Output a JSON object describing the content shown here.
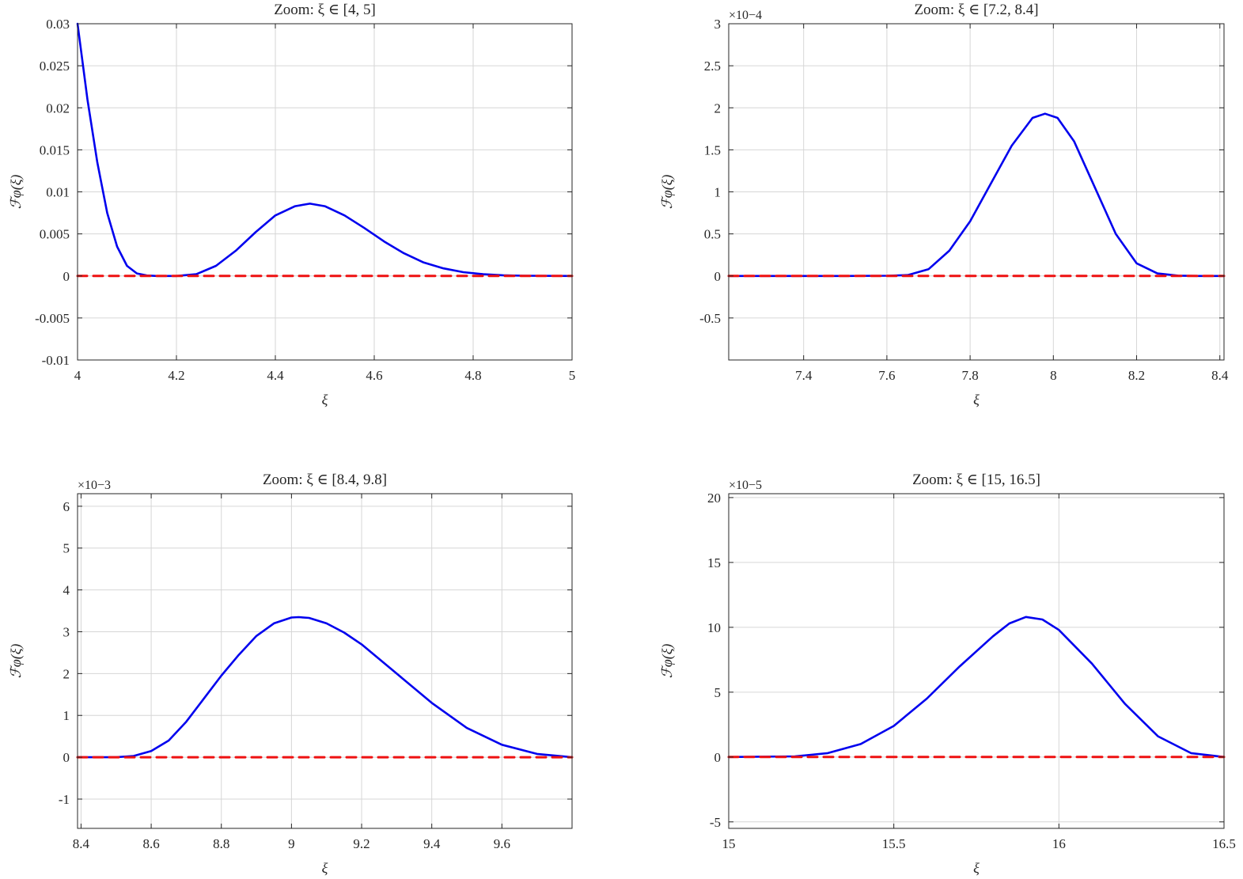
{
  "colors": {
    "blue_curve": "#0000ee",
    "red_dashed": "#ee1111",
    "grid": "#d6d6d6",
    "axes": "#262626"
  },
  "chart_data": [
    {
      "type": "line",
      "title": "Zoom: ξ ∈ [4, 5]",
      "xlabel": "ξ",
      "ylabel": "ℱφ(ξ)",
      "exponent_label": "",
      "xlim": [
        4,
        5
      ],
      "ylim": [
        -0.01,
        0.03
      ],
      "xticks": [
        4,
        4.2,
        4.4,
        4.6,
        4.8,
        5
      ],
      "xtick_labels": [
        "4",
        "4.2",
        "4.4",
        "4.6",
        "4.8",
        "5"
      ],
      "yticks": [
        -0.01,
        -0.005,
        0,
        0.005,
        0.01,
        0.015,
        0.02,
        0.025,
        0.03
      ],
      "ytick_labels": [
        "-0.01",
        "-0.005",
        "0",
        "0.005",
        "0.01",
        "0.015",
        "0.02",
        "0.025",
        "0.03"
      ],
      "grid": true,
      "series": [
        {
          "name": "blue",
          "style": "solid",
          "color": "blue",
          "x": [
            4,
            4.02,
            4.04,
            4.06,
            4.08,
            4.1,
            4.12,
            4.14,
            4.16,
            4.2,
            4.24,
            4.28,
            4.32,
            4.36,
            4.4,
            4.44,
            4.47,
            4.5,
            4.54,
            4.58,
            4.62,
            4.66,
            4.7,
            4.74,
            4.78,
            4.82,
            4.86,
            4.9,
            5
          ],
          "y": [
            0.03,
            0.021,
            0.0135,
            0.0075,
            0.0035,
            0.0012,
            0.0003,
            5e-05,
            0,
            0,
            0.0002,
            0.0012,
            0.003,
            0.0052,
            0.0072,
            0.0083,
            0.0086,
            0.0083,
            0.0072,
            0.0057,
            0.0041,
            0.0027,
            0.0016,
            0.0009,
            0.00045,
            0.0002,
            8e-05,
            2e-05,
            0
          ]
        },
        {
          "name": "red",
          "style": "dashed",
          "color": "red",
          "x": [
            4,
            5
          ],
          "y": [
            0,
            0
          ]
        }
      ]
    },
    {
      "type": "line",
      "title": "Zoom: ξ ∈ [7.2, 8.4]",
      "xlabel": "ξ",
      "ylabel": "ℱφ(ξ)",
      "exponent_label": "×10−4",
      "xlim": [
        7.22,
        8.41
      ],
      "ylim": [
        -1,
        3
      ],
      "xticks": [
        7.4,
        7.6,
        7.8,
        8,
        8.2,
        8.4
      ],
      "xtick_labels": [
        "7.4",
        "7.6",
        "7.8",
        "8",
        "8.2",
        "8.4"
      ],
      "yticks": [
        -0.5,
        0,
        0.5,
        1,
        1.5,
        2,
        2.5,
        3
      ],
      "ytick_labels": [
        "-0.5",
        "0",
        "0.5",
        "1",
        "1.5",
        "2",
        "2.5",
        "3"
      ],
      "grid": true,
      "series": [
        {
          "name": "blue",
          "style": "solid",
          "color": "blue",
          "x": [
            7.22,
            7.5,
            7.6,
            7.65,
            7.7,
            7.75,
            7.8,
            7.85,
            7.9,
            7.95,
            7.98,
            8.01,
            8.05,
            8.1,
            8.15,
            8.2,
            8.25,
            8.3,
            8.35,
            8.41
          ],
          "y": [
            0,
            0,
            0.002,
            0.01,
            0.08,
            0.3,
            0.65,
            1.1,
            1.55,
            1.88,
            1.93,
            1.88,
            1.6,
            1.05,
            0.5,
            0.15,
            0.03,
            0.003,
            0,
            0
          ]
        },
        {
          "name": "red",
          "style": "dashed",
          "color": "red",
          "x": [
            7.22,
            8.41
          ],
          "y": [
            0,
            0
          ]
        }
      ]
    },
    {
      "type": "line",
      "title": "Zoom: ξ ∈ [8.4, 9.8]",
      "xlabel": "ξ",
      "ylabel": "ℱφ(ξ)",
      "exponent_label": "×10−3",
      "xlim": [
        8.39,
        9.8
      ],
      "ylim": [
        -1.7,
        6.3
      ],
      "xticks": [
        8.4,
        8.6,
        8.8,
        9,
        9.2,
        9.4,
        9.6
      ],
      "xtick_labels": [
        "8.4",
        "8.6",
        "8.8",
        "9",
        "9.2",
        "9.4",
        "9.6"
      ],
      "yticks": [
        -1,
        0,
        1,
        2,
        3,
        4,
        5,
        6
      ],
      "ytick_labels": [
        "-1",
        "0",
        "1",
        "2",
        "3",
        "4",
        "5",
        "6"
      ],
      "grid": true,
      "series": [
        {
          "name": "blue",
          "style": "solid",
          "color": "blue",
          "x": [
            8.39,
            8.5,
            8.55,
            8.6,
            8.65,
            8.7,
            8.75,
            8.8,
            8.85,
            8.9,
            8.95,
            9.0,
            9.02,
            9.05,
            9.1,
            9.15,
            9.2,
            9.3,
            9.4,
            9.5,
            9.6,
            9.7,
            9.8
          ],
          "y": [
            0,
            0,
            0.03,
            0.15,
            0.4,
            0.85,
            1.4,
            1.95,
            2.45,
            2.9,
            3.2,
            3.34,
            3.35,
            3.33,
            3.2,
            2.98,
            2.7,
            2.0,
            1.3,
            0.7,
            0.3,
            0.08,
            0
          ]
        },
        {
          "name": "red",
          "style": "dashed",
          "color": "red",
          "x": [
            8.39,
            9.8
          ],
          "y": [
            0,
            0
          ]
        }
      ]
    },
    {
      "type": "line",
      "title": "Zoom: ξ ∈ [15, 16.5]",
      "xlabel": "ξ",
      "ylabel": "ℱφ(ξ)",
      "exponent_label": "×10−5",
      "xlim": [
        15,
        16.5
      ],
      "ylim": [
        -5.5,
        20.3
      ],
      "xticks": [
        15,
        15.5,
        16,
        16.5
      ],
      "xtick_labels": [
        "15",
        "15.5",
        "16",
        "16.5"
      ],
      "yticks": [
        -5,
        0,
        5,
        10,
        15,
        20
      ],
      "ytick_labels": [
        "-5",
        "0",
        "5",
        "10",
        "15",
        "20"
      ],
      "grid": true,
      "series": [
        {
          "name": "blue",
          "style": "solid",
          "color": "blue",
          "x": [
            15,
            15.2,
            15.3,
            15.4,
            15.5,
            15.6,
            15.7,
            15.8,
            15.85,
            15.9,
            15.95,
            16.0,
            16.1,
            16.2,
            16.3,
            16.4,
            16.5
          ],
          "y": [
            0,
            0.05,
            0.3,
            1.0,
            2.4,
            4.5,
            7.0,
            9.3,
            10.3,
            10.8,
            10.6,
            9.8,
            7.2,
            4.1,
            1.6,
            0.3,
            0
          ]
        },
        {
          "name": "red",
          "style": "dashed",
          "color": "red",
          "x": [
            15,
            16.5
          ],
          "y": [
            0,
            0
          ]
        }
      ]
    }
  ]
}
